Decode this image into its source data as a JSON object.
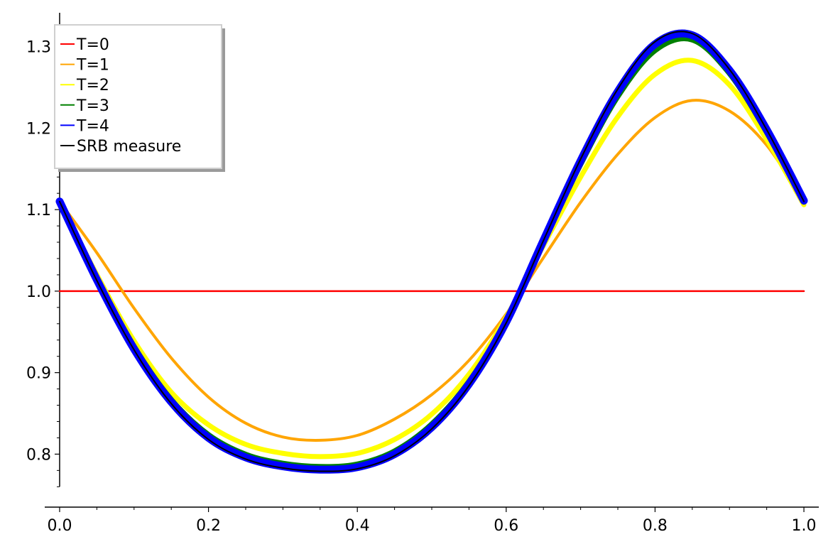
{
  "chart_data": {
    "type": "line",
    "title": "",
    "xlabel": "",
    "ylabel": "",
    "xlim": [
      -0.02,
      1.02
    ],
    "ylim": [
      0.735,
      1.338
    ],
    "x_ticks": [
      0.0,
      0.2,
      0.4,
      0.6,
      0.8,
      1.0
    ],
    "x_tick_labels": [
      "0.0",
      "0.2",
      "0.4",
      "0.6",
      "0.8",
      "1.0"
    ],
    "y_ticks": [
      0.8,
      0.9,
      1.0,
      1.1,
      1.2,
      1.3
    ],
    "y_tick_labels": [
      "0.8",
      "0.9",
      "1.0",
      "1.1",
      "1.2",
      "1.3"
    ],
    "grid": false,
    "legend_position": "top-left",
    "x": [
      0.0,
      0.05,
      0.1,
      0.15,
      0.2,
      0.25,
      0.3,
      0.35,
      0.4,
      0.45,
      0.5,
      0.55,
      0.6,
      0.65,
      0.7,
      0.75,
      0.8,
      0.85,
      0.9,
      0.95,
      1.0
    ],
    "series": [
      {
        "name": "T=0",
        "color": "#ff0000",
        "values": [
          1.0,
          1.0,
          1.0,
          1.0,
          1.0,
          1.0,
          1.0,
          1.0,
          1.0,
          1.0,
          1.0,
          1.0,
          1.0,
          1.0,
          1.0,
          1.0,
          1.0,
          1.0,
          1.0,
          1.0,
          1.0
        ]
      },
      {
        "name": "T=1",
        "color": "#ffa500",
        "values": [
          1.11,
          1.047,
          0.979,
          0.918,
          0.87,
          0.838,
          0.821,
          0.817,
          0.823,
          0.843,
          0.873,
          0.915,
          0.972,
          1.041,
          1.109,
          1.168,
          1.213,
          1.234,
          1.221,
          1.179,
          1.11
        ]
      },
      {
        "name": "T=2",
        "color": "#ffff00",
        "values": [
          1.11,
          1.02,
          0.939,
          0.876,
          0.836,
          0.812,
          0.801,
          0.797,
          0.801,
          0.818,
          0.849,
          0.898,
          0.968,
          1.056,
          1.14,
          1.214,
          1.266,
          1.283,
          1.253,
          1.186,
          1.106
        ]
      },
      {
        "name": "T=3",
        "color": "#008000",
        "values": [
          1.11,
          1.015,
          0.931,
          0.866,
          0.823,
          0.799,
          0.788,
          0.784,
          0.787,
          0.803,
          0.836,
          0.888,
          0.963,
          1.061,
          1.157,
          1.24,
          1.296,
          1.309,
          1.268,
          1.196,
          1.11
        ]
      },
      {
        "name": "T=4",
        "color": "#0000ff",
        "values": [
          1.11,
          1.014,
          0.929,
          0.864,
          0.82,
          0.796,
          0.785,
          0.781,
          0.784,
          0.8,
          0.833,
          0.886,
          0.962,
          1.062,
          1.16,
          1.245,
          1.303,
          1.314,
          1.271,
          1.198,
          1.111
        ]
      },
      {
        "name": "SRB measure",
        "color": "#000000",
        "values": [
          1.11,
          1.013,
          0.928,
          0.862,
          0.818,
          0.794,
          0.783,
          0.779,
          0.782,
          0.798,
          0.831,
          0.884,
          0.961,
          1.062,
          1.162,
          1.248,
          1.306,
          1.316,
          1.272,
          1.198,
          1.11
        ]
      }
    ]
  }
}
